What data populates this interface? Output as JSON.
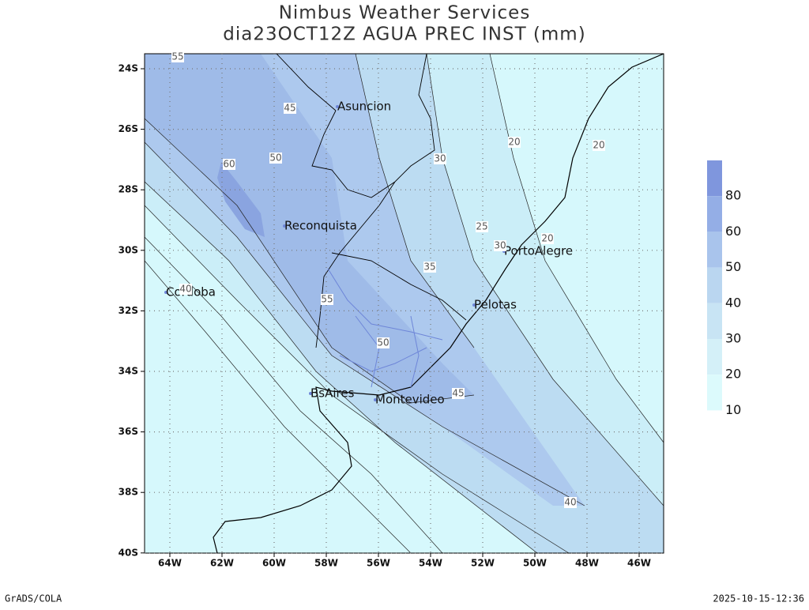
{
  "header": {
    "title": "Nimbus Weather Services",
    "subtitle": "dia23OCT12Z AGUA PREC INST (mm)"
  },
  "lat_labels": [
    "24S",
    "26S",
    "28S",
    "30S",
    "32S",
    "34S",
    "36S",
    "38S",
    "40S"
  ],
  "lon_labels": [
    "64W",
    "62W",
    "60W",
    "58W",
    "56W",
    "54W",
    "52W",
    "50W",
    "48W",
    "46W"
  ],
  "cities": [
    "Asuncion",
    "Reconquista",
    "PortoAlegre",
    "Pelotas",
    "Cordoba",
    "BsAires",
    "Montevideo"
  ],
  "contour_labels": [
    "55",
    "45",
    "50",
    "60",
    "30",
    "20",
    "20",
    "25",
    "30",
    "20",
    "35",
    "55",
    "50",
    "45",
    "40",
    "40"
  ],
  "colorbar": [
    80,
    60,
    50,
    40,
    30,
    20,
    10
  ],
  "footer": {
    "left": "GrADS/COLA",
    "right": "2025-10-15-12:36"
  }
}
